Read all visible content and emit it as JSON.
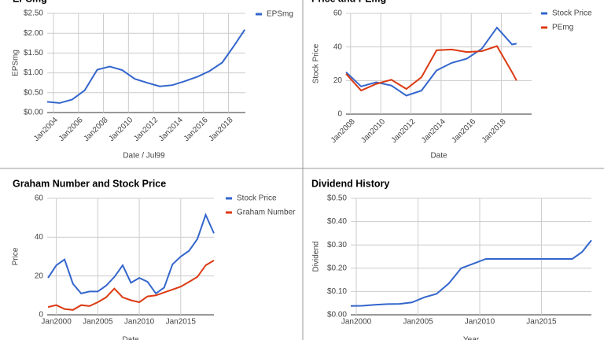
{
  "chart_data": [
    {
      "type": "line",
      "title": "EPSmg",
      "x_label": "Date / Jul99",
      "y_label": "EPSmg",
      "x": [
        2003.5,
        2004.5,
        2005.5,
        2006.5,
        2007.5,
        2008.5,
        2009.5,
        2010.5,
        2011.5,
        2012.5,
        2013.5,
        2014.5,
        2015.5,
        2016.5,
        2017.5,
        2018.5,
        2019.3
      ],
      "series": [
        {
          "name": "EPSmg",
          "color": "#3366cc",
          "values": [
            0.27,
            0.24,
            0.33,
            0.56,
            1.08,
            1.16,
            1.07,
            0.85,
            0.75,
            0.66,
            0.69,
            0.79,
            0.9,
            1.05,
            1.26,
            1.71,
            2.09
          ]
        }
      ],
      "xlim": [
        2003.5,
        2019.35
      ],
      "xticks": [
        {
          "value": 2004,
          "label": "Jan2004"
        },
        {
          "value": 2006,
          "label": "Jan2006"
        },
        {
          "value": 2008,
          "label": "Jan2008"
        },
        {
          "value": 2010,
          "label": "Jan2010"
        },
        {
          "value": 2012,
          "label": "Jan2012"
        },
        {
          "value": 2014,
          "label": "Jan2014"
        },
        {
          "value": 2016,
          "label": "Jan2016"
        },
        {
          "value": 2018,
          "label": "Jan2018"
        }
      ],
      "ylim": [
        0,
        2.5
      ],
      "yticks": [
        {
          "value": 0,
          "label": "$0.00"
        },
        {
          "value": 0.5,
          "label": "$0.50"
        },
        {
          "value": 1,
          "label": "$1.00"
        },
        {
          "value": 1.5,
          "label": "$1.50"
        },
        {
          "value": 2,
          "label": "$2.00"
        },
        {
          "value": 2.5,
          "label": "$2.50"
        }
      ],
      "grid": true
    },
    {
      "type": "line",
      "title": "Price and PEmg",
      "x_label": "Date",
      "y_label": "Stock Price",
      "x": [
        2007.7,
        2008.7,
        2009.7,
        2010.7,
        2011.7,
        2012.7,
        2013.7,
        2014.7,
        2015.7,
        2016.7,
        2017.7,
        2018.7,
        2019
      ],
      "series": [
        {
          "name": "Stock Price",
          "color": "#3366cc",
          "values": [
            25,
            16.5,
            19,
            17,
            11,
            14,
            26,
            30.5,
            33,
            39,
            51.5,
            41.5,
            42
          ]
        },
        {
          "name": "PEmg",
          "color": "#dc3912",
          "values": [
            24,
            14,
            18,
            20.5,
            15,
            22,
            38,
            38.5,
            37,
            37.5,
            40.5,
            25,
            20
          ]
        }
      ],
      "xlim": [
        2007.7,
        2020
      ],
      "xticks": [
        {
          "value": 2008,
          "label": "Jan2008"
        },
        {
          "value": 2010,
          "label": "Jan2010"
        },
        {
          "value": 2012,
          "label": "Jan2012"
        },
        {
          "value": 2014,
          "label": "Jan2014"
        },
        {
          "value": 2016,
          "label": "Jan2016"
        },
        {
          "value": 2018,
          "label": "Jan2018"
        }
      ],
      "ylim": [
        0,
        60
      ],
      "yticks": [
        0,
        20,
        40,
        60
      ],
      "grid": true
    },
    {
      "type": "line",
      "title": "Graham Number and Stock Price",
      "x_label": "Date",
      "y_label": "Price",
      "x": [
        1999,
        2000,
        2001,
        2002,
        2003,
        2004,
        2005,
        2006,
        2007,
        2008,
        2009,
        2010,
        2011,
        2012,
        2013,
        2014,
        2015,
        2016,
        2017,
        2018,
        2019
      ],
      "series": [
        {
          "name": "Stock Price",
          "color": "#3366cc",
          "values": [
            19,
            25.5,
            28.5,
            16,
            11,
            12,
            12,
            15,
            19.5,
            25.5,
            16.5,
            19,
            17,
            11,
            14,
            26,
            30,
            33,
            39,
            51.5,
            42
          ]
        },
        {
          "name": "Graham Number",
          "color": "#dc3912",
          "values": [
            4,
            5,
            3,
            2.5,
            5,
            4.5,
            6.5,
            9,
            13.5,
            9,
            7.5,
            6.5,
            9.5,
            10,
            11.5,
            13,
            14.5,
            17,
            19.5,
            25.5,
            28
          ]
        }
      ],
      "xlim": [
        1998.9,
        2019
      ],
      "xticks": [
        {
          "value": 2000,
          "label": "Jan2000"
        },
        {
          "value": 2005,
          "label": "Jan2005"
        },
        {
          "value": 2010,
          "label": "Jan2010"
        },
        {
          "value": 2015,
          "label": "Jan2015"
        }
      ],
      "ylim": [
        0,
        60
      ],
      "yticks": [
        0,
        20,
        40,
        60
      ],
      "grid": true
    },
    {
      "type": "line",
      "title": "Dividend History",
      "x_label": "Year",
      "y_label": "Dividend",
      "x": [
        1999.55,
        2000.5,
        2001.5,
        2002.5,
        2003.5,
        2004.5,
        2005.5,
        2006.5,
        2007.5,
        2008.5,
        2009.5,
        2010.5,
        2011.5,
        2012.5,
        2013.5,
        2014.5,
        2015.5,
        2016.5,
        2017.5,
        2018.3,
        2019.05
      ],
      "values": [
        0.038,
        0.039,
        0.043,
        0.046,
        0.047,
        0.053,
        0.075,
        0.09,
        0.135,
        0.2,
        0.22,
        0.24,
        0.24,
        0.24,
        0.24,
        0.24,
        0.24,
        0.24,
        0.24,
        0.27,
        0.32
      ],
      "color": "#3366cc",
      "xlim": [
        1999.55,
        2019.05
      ],
      "xticks": [
        {
          "value": 2000,
          "label": "Jan2000"
        },
        {
          "value": 2005,
          "label": "Jan2005"
        },
        {
          "value": 2010,
          "label": "Jan2010"
        },
        {
          "value": 2015,
          "label": "Jan2015"
        }
      ],
      "ylim": [
        0,
        0.5
      ],
      "yticks": [
        {
          "value": 0,
          "label": "$0.00"
        },
        {
          "value": 0.1,
          "label": "$0.10"
        },
        {
          "value": 0.2,
          "label": "$0.20"
        },
        {
          "value": 0.3,
          "label": "$0.30"
        },
        {
          "value": 0.4,
          "label": "$0.40"
        },
        {
          "value": 0.5,
          "label": "$0.50"
        }
      ],
      "grid": true
    }
  ]
}
